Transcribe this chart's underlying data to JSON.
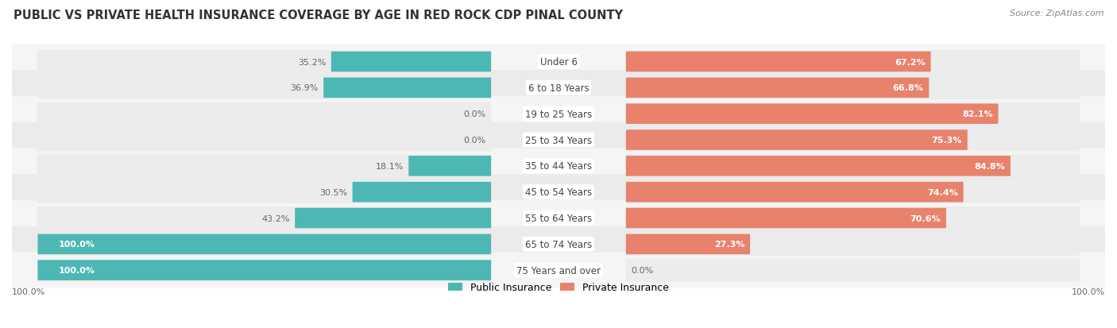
{
  "title": "PUBLIC VS PRIVATE HEALTH INSURANCE COVERAGE BY AGE IN RED ROCK CDP PINAL COUNTY",
  "source": "Source: ZipAtlas.com",
  "categories": [
    "Under 6",
    "6 to 18 Years",
    "19 to 25 Years",
    "25 to 34 Years",
    "35 to 44 Years",
    "45 to 54 Years",
    "55 to 64 Years",
    "65 to 74 Years",
    "75 Years and over"
  ],
  "public_values": [
    35.2,
    36.9,
    0.0,
    0.0,
    18.1,
    30.5,
    43.2,
    100.0,
    100.0
  ],
  "private_values": [
    67.2,
    66.8,
    82.1,
    75.3,
    84.8,
    74.4,
    70.6,
    27.3,
    0.0
  ],
  "public_color": "#4db8b3",
  "private_color": "#e8826c",
  "public_color_light": "#a8dbd8",
  "private_color_light": "#f2bfb0",
  "bar_bg_color": "#ececec",
  "row_bg_even": "#f5f5f5",
  "row_bg_odd": "#ebebeb",
  "title_fontsize": 10.5,
  "source_fontsize": 8,
  "label_fontsize": 8.5,
  "value_fontsize": 8,
  "fig_bg_color": "#ffffff"
}
